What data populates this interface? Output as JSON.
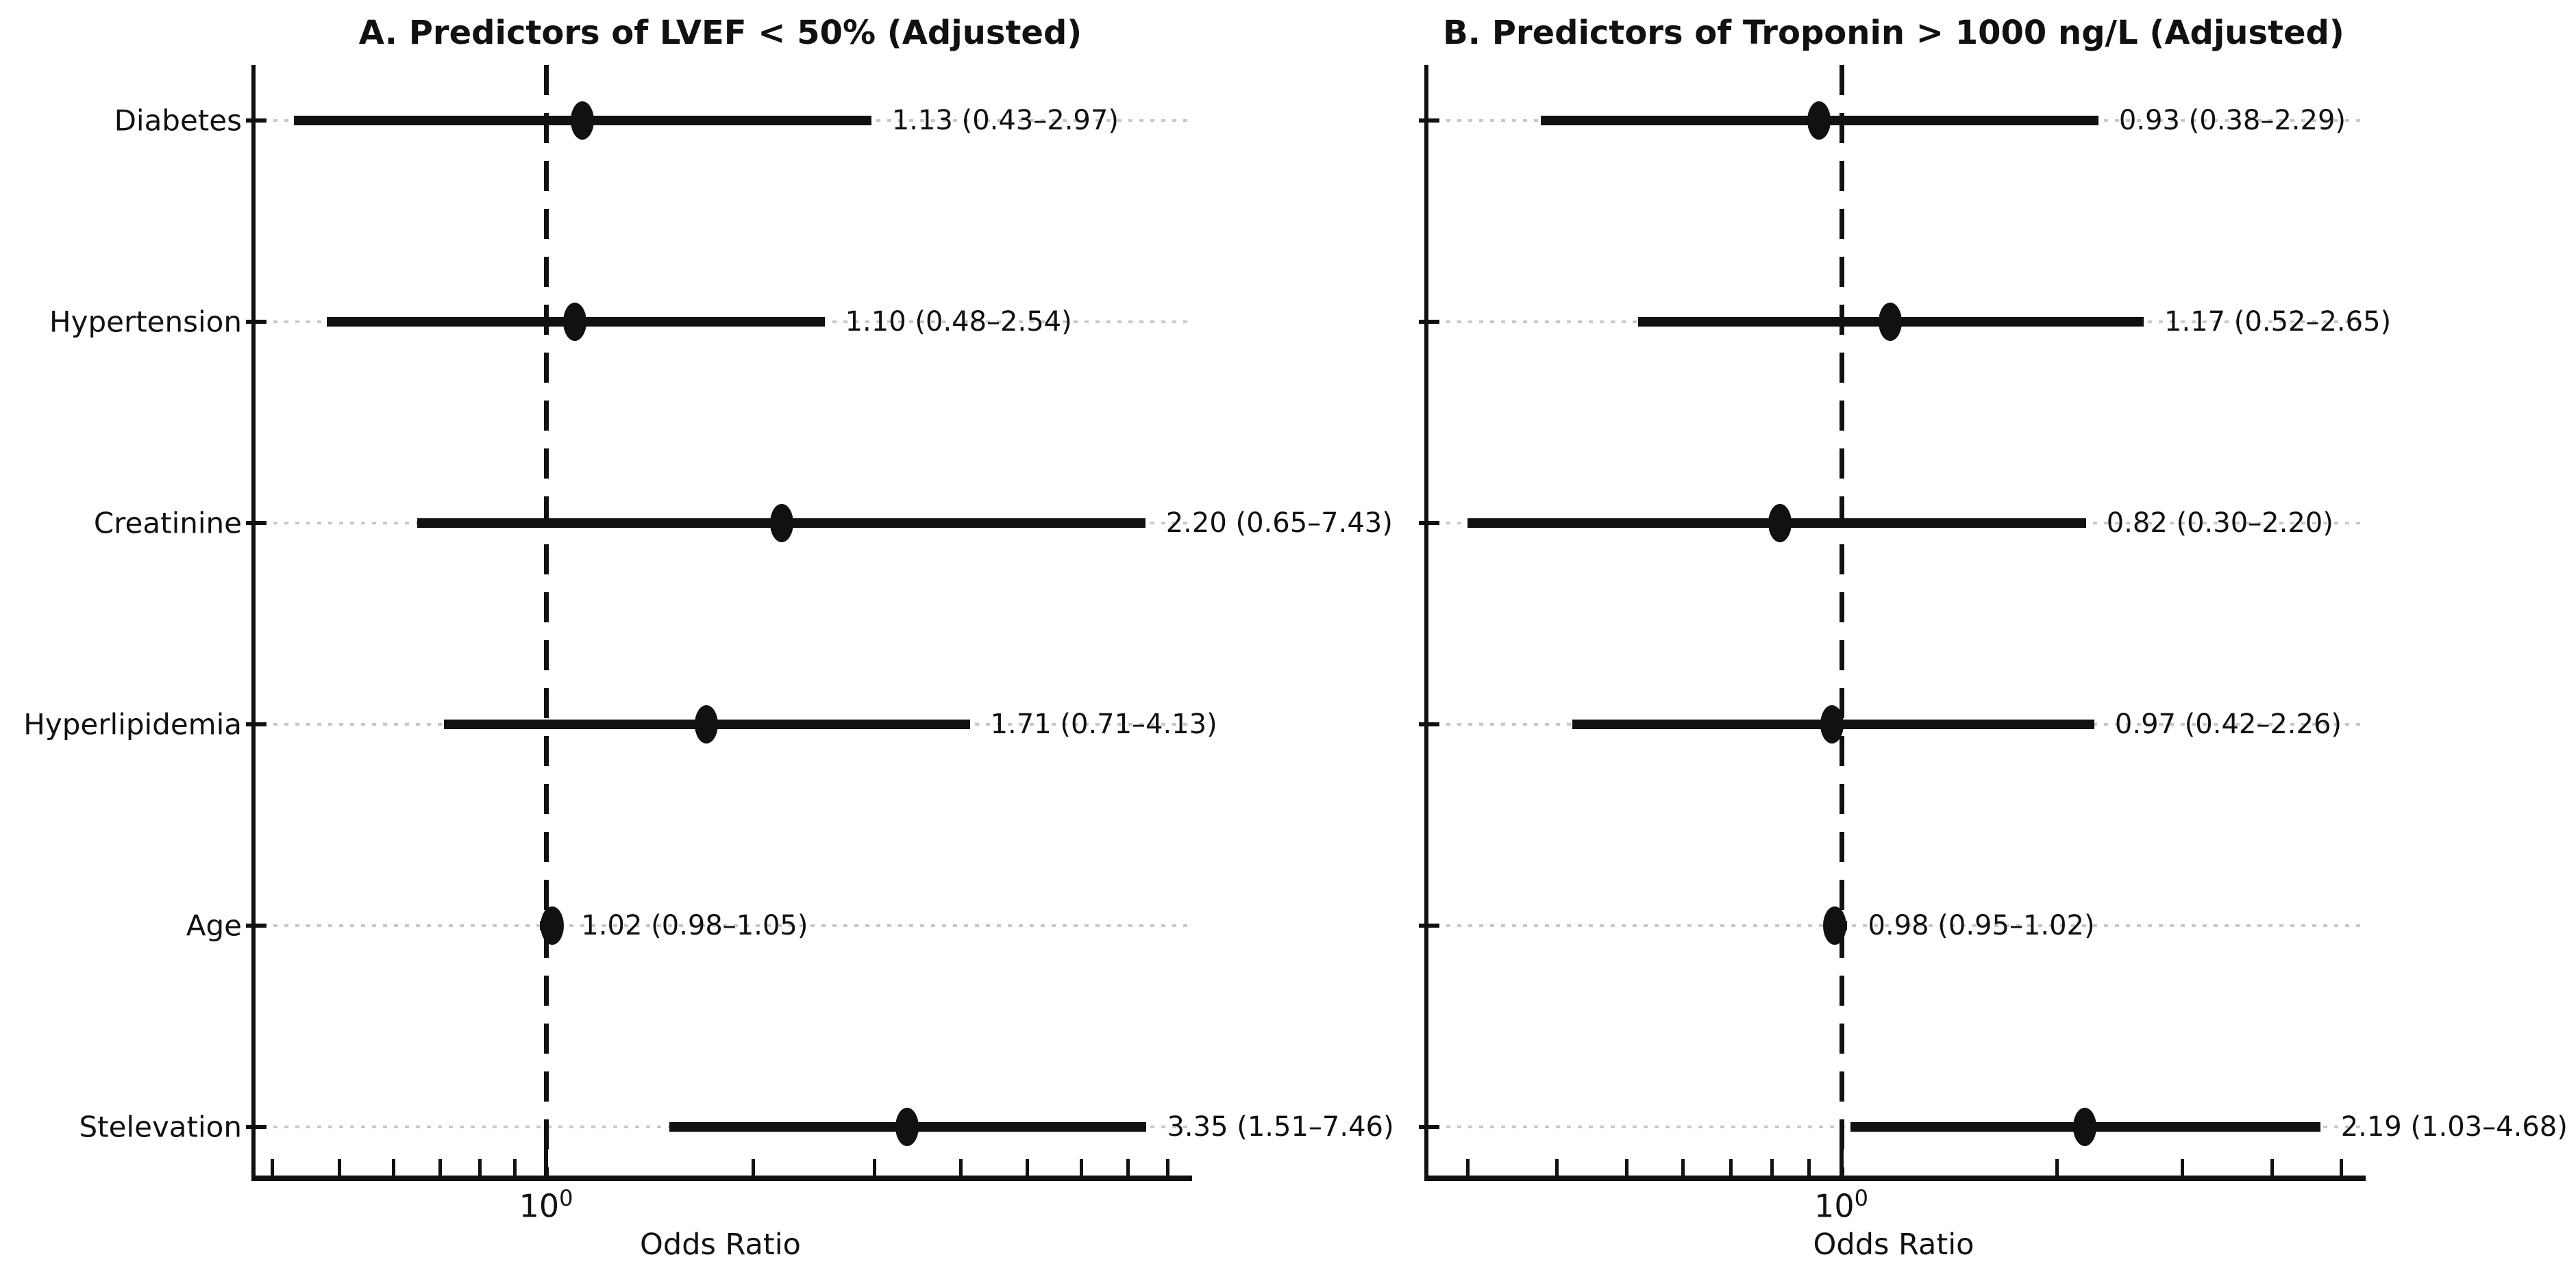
{
  "figure": {
    "background": "#ffffff",
    "text_color": "#111111",
    "line_color": "#111111",
    "grid_color": "#c8c8c8",
    "reference_line_style": "dashed",
    "grid_style": "dotted"
  },
  "chart_data": [
    {
      "type": "scatter",
      "subtype": "forest-plot",
      "title": "A. Predictors of LVEF < 50% (Adjusted)",
      "xlabel": "Odds Ratio",
      "xscale": "log",
      "xlim": [
        0.373,
        8.61
      ],
      "grid": true,
      "legend": "none",
      "reference_line": 1.0,
      "x_major_tick": {
        "value": 1.0,
        "label_base": "10",
        "label_exp": "0"
      },
      "x_minor_ticks": [
        0.4,
        0.5,
        0.6,
        0.7,
        0.8,
        0.9,
        2,
        3,
        4,
        5,
        6,
        7,
        8
      ],
      "show_category_labels": true,
      "categories": [
        "Diabetes",
        "Hypertension",
        "Creatinine",
        "Hyperlipidemia",
        "Age",
        "Stelevation"
      ],
      "points": [
        {
          "category": "Diabetes",
          "or": 1.13,
          "ci_low": 0.43,
          "ci_high": 2.97,
          "annotation": "1.13 (0.43–2.97)"
        },
        {
          "category": "Hypertension",
          "or": 1.1,
          "ci_low": 0.48,
          "ci_high": 2.54,
          "annotation": "1.10 (0.48–2.54)"
        },
        {
          "category": "Creatinine",
          "or": 2.2,
          "ci_low": 0.65,
          "ci_high": 7.43,
          "annotation": "2.20 (0.65–7.43)"
        },
        {
          "category": "Hyperlipidemia",
          "or": 1.71,
          "ci_low": 0.71,
          "ci_high": 4.13,
          "annotation": "1.71 (0.71–4.13)"
        },
        {
          "category": "Age",
          "or": 1.02,
          "ci_low": 0.98,
          "ci_high": 1.05,
          "annotation": "1.02 (0.98–1.05)"
        },
        {
          "category": "Stelevation",
          "or": 3.35,
          "ci_low": 1.51,
          "ci_high": 7.46,
          "annotation": "3.35 (1.51–7.46)"
        }
      ]
    },
    {
      "type": "scatter",
      "subtype": "forest-plot",
      "title": "B. Predictors of Troponin > 1000 ng/L (Adjusted)",
      "xlabel": "Odds Ratio",
      "xscale": "log",
      "xlim": [
        0.261,
        5.37
      ],
      "grid": true,
      "legend": "none",
      "reference_line": 1.0,
      "x_major_tick": {
        "value": 1.0,
        "label_base": "10",
        "label_exp": "0"
      },
      "x_minor_ticks": [
        0.3,
        0.4,
        0.5,
        0.6,
        0.7,
        0.8,
        0.9,
        2,
        3,
        4,
        5
      ],
      "show_category_labels": false,
      "categories": [
        "Diabetes",
        "Hypertension",
        "Creatinine",
        "Hyperlipidemia",
        "Age",
        "Stelevation"
      ],
      "points": [
        {
          "category": "Diabetes",
          "or": 0.93,
          "ci_low": 0.38,
          "ci_high": 2.29,
          "annotation": "0.93 (0.38–2.29)"
        },
        {
          "category": "Hypertension",
          "or": 1.17,
          "ci_low": 0.52,
          "ci_high": 2.65,
          "annotation": "1.17 (0.52–2.65)"
        },
        {
          "category": "Creatinine",
          "or": 0.82,
          "ci_low": 0.3,
          "ci_high": 2.2,
          "annotation": "0.82 (0.30–2.20)"
        },
        {
          "category": "Hyperlipidemia",
          "or": 0.97,
          "ci_low": 0.42,
          "ci_high": 2.26,
          "annotation": "0.97 (0.42–2.26)"
        },
        {
          "category": "Age",
          "or": 0.98,
          "ci_low": 0.95,
          "ci_high": 1.02,
          "annotation": "0.98 (0.95–1.02)"
        },
        {
          "category": "Stelevation",
          "or": 2.19,
          "ci_low": 1.03,
          "ci_high": 4.68,
          "annotation": "2.19 (1.03–4.68)"
        }
      ]
    }
  ]
}
